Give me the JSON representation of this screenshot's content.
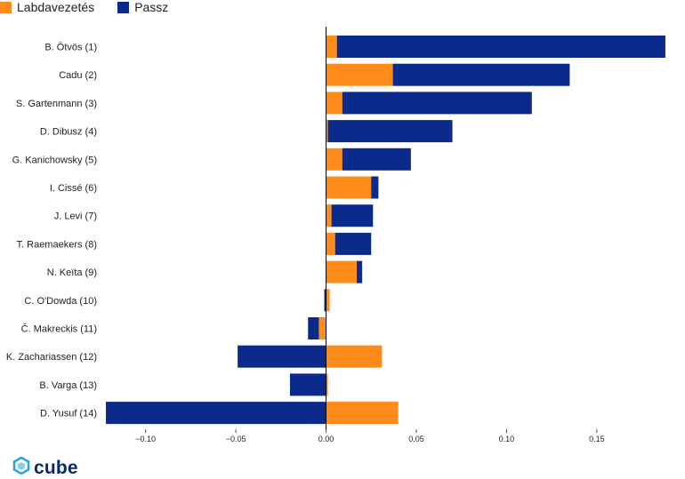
{
  "colors": {
    "labdavezetes": "#ff8c1a",
    "passz": "#0a2a8c",
    "axis": "#000000"
  },
  "legend": {
    "items": [
      {
        "label": "Labdavezetés",
        "color": "#ff8c1a"
      },
      {
        "label": "Passz",
        "color": "#0a2a8c"
      }
    ]
  },
  "logo": {
    "text": "cube",
    "icon": "cube-icon"
  },
  "chart_data": {
    "type": "bar",
    "orientation": "horizontal",
    "stacked": true,
    "categories": [
      "B. Ötvös (1)",
      "Cadu (2)",
      "S. Gartenmann (3)",
      "D. Dibusz (4)",
      "G. Kanichowsky (5)",
      "I. Cissé (6)",
      "J. Levi (7)",
      "T. Raemaekers (8)",
      "N. Keïta (9)",
      "C. O'Dowda (10)",
      "Č. Makreckis (11)",
      "K. Zachariassen (12)",
      "B. Varga (13)",
      "D. Yusuf (14)"
    ],
    "series": [
      {
        "name": "Labdavezetés",
        "values": [
          0.006,
          0.037,
          0.009,
          0.001,
          0.009,
          0.025,
          0.003,
          0.005,
          0.017,
          0.002,
          -0.004,
          0.031,
          0.001,
          0.04
        ]
      },
      {
        "name": "Passz",
        "values": [
          0.182,
          0.098,
          0.105,
          0.069,
          0.038,
          0.004,
          0.023,
          0.02,
          0.003,
          -0.001,
          -0.006,
          -0.049,
          -0.02,
          -0.122
        ]
      }
    ],
    "xlim": [
      -0.123,
      0.19
    ],
    "xticks": [
      -0.1,
      -0.05,
      0.0,
      0.05,
      0.1,
      0.15
    ],
    "xtick_labels": [
      "−0.10",
      "−0.05",
      "0.00",
      "0.05",
      "0.10",
      "0.15"
    ],
    "legend_position": "top-left",
    "grid": false
  }
}
